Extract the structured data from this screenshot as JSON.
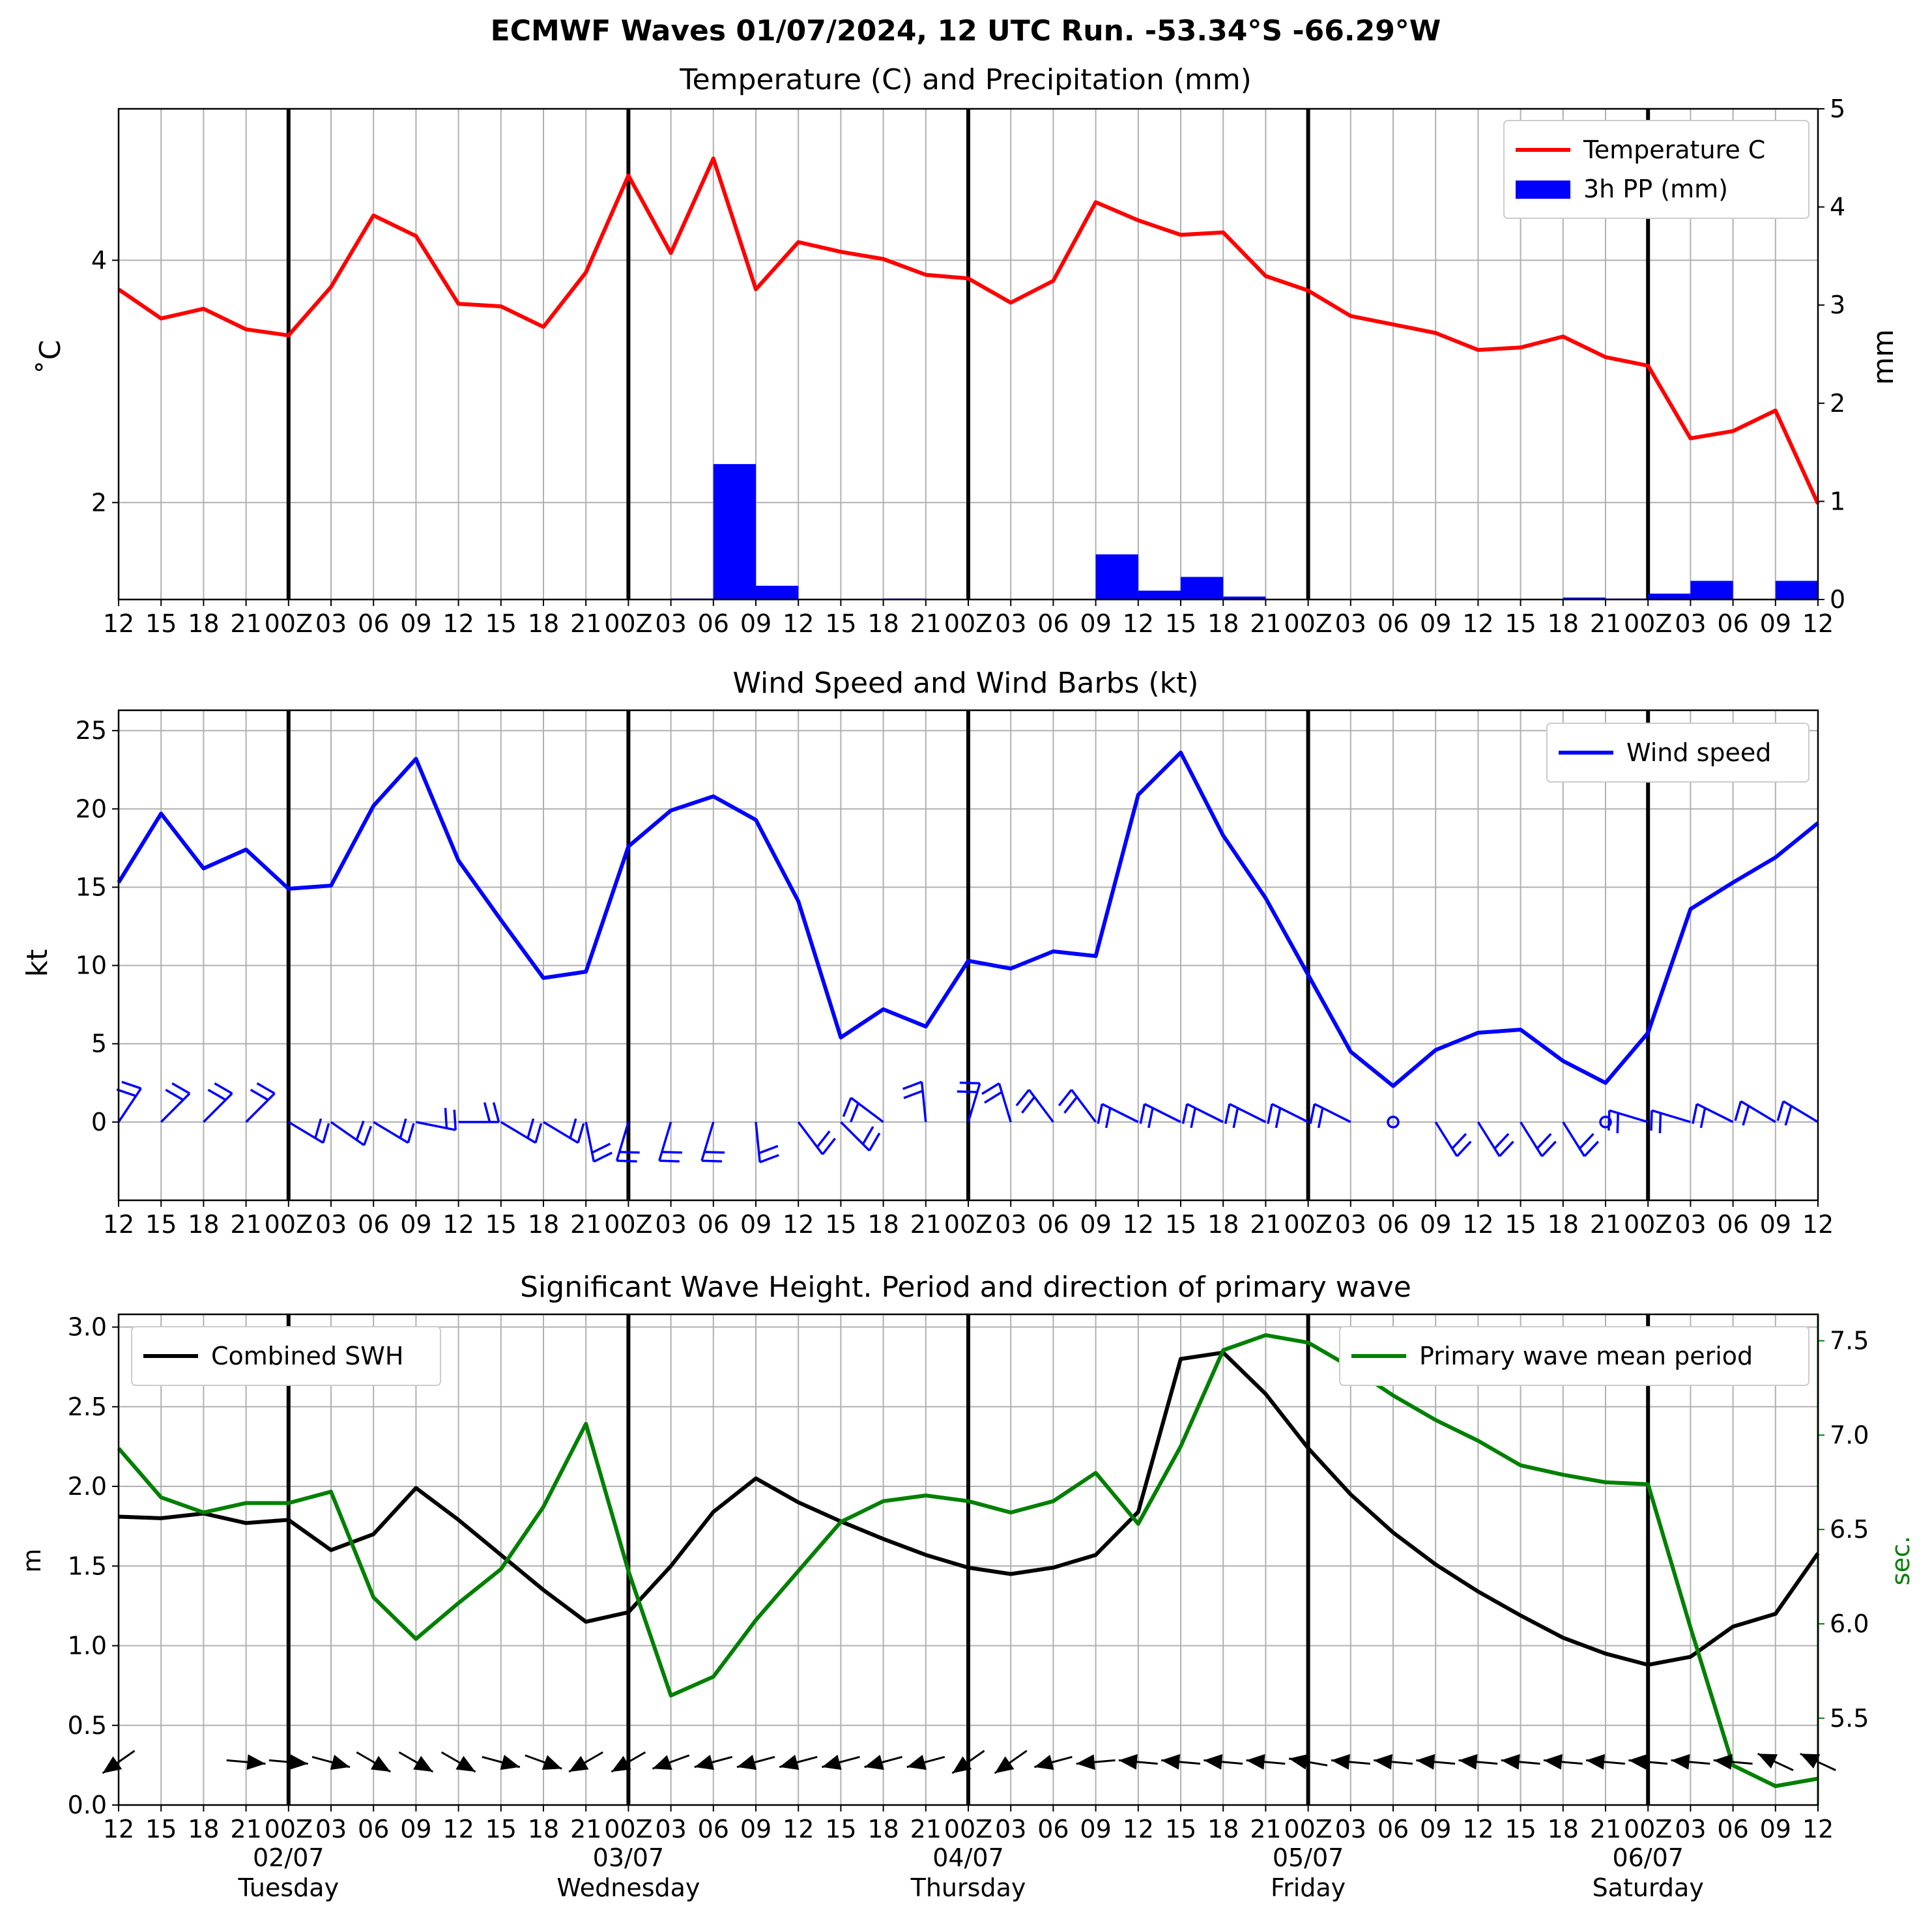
{
  "figure": {
    "title": "ECMWF Waves 01/07/2024, 12 UTC Run. -53.34°S -66.29°W"
  },
  "colors": {
    "temperature": "#ff0000",
    "precipitation": "#0000ff",
    "wind": "#0000ff",
    "swh": "#000000",
    "period": "#008000",
    "grid": "#b0b0b0"
  },
  "chart_data": [
    {
      "type": "line",
      "id": "temp_precip",
      "title": "Temperature (C) and Precipitation (mm)",
      "ylabel": "$^\\circ$C",
      "ylabel_display": "˚C",
      "y2label": "mm",
      "ylim": [
        1.2,
        5.25
      ],
      "y2lim": [
        0,
        5
      ],
      "yticks": [
        2,
        4
      ],
      "y2ticks": [
        0,
        1,
        2,
        3,
        4,
        5
      ],
      "x_ticklabels": [
        "12",
        "15",
        "18",
        "21",
        "00Z",
        "03",
        "06",
        "09",
        "12",
        "15",
        "18",
        "21",
        "00Z",
        "03",
        "06",
        "09",
        "12",
        "15",
        "18",
        "21",
        "00Z",
        "03",
        "06",
        "09",
        "12",
        "15",
        "18",
        "21",
        "00Z",
        "03",
        "06",
        "09",
        "12",
        "15",
        "18",
        "21",
        "00Z",
        "03",
        "06",
        "09",
        "12"
      ],
      "legend": [
        "Temperature C",
        "3h PP (mm)"
      ],
      "legend_position": "top-right",
      "grid": true,
      "series": [
        {
          "name": "Temperature C",
          "type": "line",
          "values": [
            3.76,
            3.52,
            3.6,
            3.43,
            3.38,
            3.78,
            4.37,
            4.2,
            3.64,
            3.62,
            3.45,
            3.9,
            4.7,
            4.06,
            4.84,
            3.76,
            4.15,
            4.07,
            4.01,
            3.88,
            3.85,
            3.65,
            3.83,
            4.48,
            4.33,
            4.21,
            4.23,
            3.87,
            3.75,
            3.54,
            3.47,
            3.4,
            3.26,
            3.28,
            3.37,
            3.2,
            3.13,
            2.53,
            2.59,
            2.76,
            1.99
          ]
        },
        {
          "name": "3h PP (mm)",
          "type": "bar",
          "values": [
            0,
            0,
            0,
            0,
            0,
            0,
            0,
            0,
            0,
            0,
            0,
            0,
            0,
            0.01,
            1.38,
            0.14,
            0,
            0,
            0.01,
            0,
            0,
            0,
            0,
            0.46,
            0.09,
            0.23,
            0.03,
            0,
            0,
            0,
            0,
            0,
            0,
            0,
            0.02,
            0.01,
            0.06,
            0.19,
            0,
            0.19
          ]
        }
      ]
    },
    {
      "type": "line",
      "id": "wind",
      "title": "Wind Speed and Wind Barbs (kt)",
      "ylabel": "kt",
      "ylim": [
        -5,
        26.3
      ],
      "yticks": [
        0,
        5,
        10,
        15,
        20,
        25
      ],
      "x_ticklabels": [
        "12",
        "15",
        "18",
        "21",
        "00Z",
        "03",
        "06",
        "09",
        "12",
        "15",
        "18",
        "21",
        "00Z",
        "03",
        "06",
        "09",
        "12",
        "15",
        "18",
        "21",
        "00Z",
        "03",
        "06",
        "09",
        "12",
        "15",
        "18",
        "21",
        "00Z",
        "03",
        "06",
        "09",
        "12",
        "15",
        "18",
        "21",
        "00Z",
        "03",
        "06",
        "09",
        "12"
      ],
      "legend": [
        "Wind speed"
      ],
      "legend_position": "top-right",
      "grid": true,
      "series": [
        {
          "name": "Wind speed",
          "values": [
            15.3,
            19.7,
            16.2,
            17.4,
            14.9,
            15.1,
            20.2,
            23.2,
            16.7,
            12.9,
            9.2,
            9.6,
            17.6,
            19.9,
            20.8,
            19.3,
            14.1,
            5.4,
            7.2,
            6.1,
            10.3,
            9.8,
            10.9,
            10.6,
            20.9,
            23.6,
            18.3,
            14.3,
            9.4,
            4.5,
            2.3,
            4.6,
            5.7,
            5.9,
            3.9,
            2.5,
            5.7,
            13.6,
            15.3,
            16.9,
            19.1
          ]
        }
      ],
      "barbs": [
        {
          "u": -1,
          "v": -1.5
        },
        {
          "u": -1,
          "v": -1
        },
        {
          "u": -1,
          "v": -1
        },
        {
          "u": -1,
          "v": -1
        },
        {
          "u": -1,
          "v": 0.6
        },
        {
          "u": -1,
          "v": 0.7
        },
        {
          "u": -1,
          "v": 0.6
        },
        {
          "u": -1,
          "v": 0.2
        },
        {
          "u": -1,
          "v": 0
        },
        {
          "u": -1,
          "v": 0.6
        },
        {
          "u": -1,
          "v": 0.6
        },
        {
          "u": -0.2,
          "v": 1
        },
        {
          "u": 0.3,
          "v": 1
        },
        {
          "u": 0.3,
          "v": 1
        },
        {
          "u": 0.3,
          "v": 1
        },
        {
          "u": -0.1,
          "v": 1
        },
        {
          "u": -0.6,
          "v": 0.8
        },
        {
          "u": -0.7,
          "v": 0.7
        },
        {
          "u": 0.8,
          "v": -0.6
        },
        {
          "u": 0.1,
          "v": -1
        },
        {
          "u": -0.3,
          "v": -1
        },
        {
          "u": 0.3,
          "v": -1
        },
        {
          "u": 0.6,
          "v": -0.8
        },
        {
          "u": 0.6,
          "v": -0.8
        },
        {
          "u": 1,
          "v": -0.5
        },
        {
          "u": 1,
          "v": -0.5
        },
        {
          "u": 1,
          "v": -0.5
        },
        {
          "u": 1,
          "v": -0.5
        },
        {
          "u": 1,
          "v": -0.5
        },
        {
          "u": 1,
          "v": -0.5
        },
        {
          "u": 0,
          "v": 0,
          "calm": true
        },
        {
          "u": -0.5,
          "v": 0.8
        },
        {
          "u": -0.5,
          "v": 0.8
        },
        {
          "u": -0.5,
          "v": 0.8
        },
        {
          "u": -0.5,
          "v": 0.8
        },
        {
          "u": 0,
          "v": 0,
          "calm": true
        },
        {
          "u": 1,
          "v": -0.3
        },
        {
          "u": 1,
          "v": -0.3
        },
        {
          "u": 1,
          "v": -0.5
        },
        {
          "u": 1,
          "v": -0.6
        },
        {
          "u": 1,
          "v": -0.6
        }
      ]
    },
    {
      "type": "line",
      "id": "waves",
      "title": "Significant Wave Height. Period and direction of primary wave",
      "ylabel": "m",
      "y2label": "sec.",
      "ylim": [
        0,
        3.08
      ],
      "y2lim": [
        5.04,
        7.64
      ],
      "yticks": [
        0.0,
        0.5,
        1.0,
        1.5,
        2.0,
        2.5,
        3.0
      ],
      "y2ticks": [
        5.5,
        6.0,
        6.5,
        7.0,
        7.5
      ],
      "x_ticklabels": [
        "12",
        "15",
        "18",
        "21",
        "00Z",
        "03",
        "06",
        "09",
        "12",
        "15",
        "18",
        "21",
        "00Z",
        "03",
        "06",
        "09",
        "12",
        "15",
        "18",
        "21",
        "00Z",
        "03",
        "06",
        "09",
        "12",
        "15",
        "18",
        "21",
        "00Z",
        "03",
        "06",
        "09",
        "12",
        "15",
        "18",
        "21",
        "00Z",
        "03",
        "06",
        "09",
        "12"
      ],
      "day_labels": [
        {
          "index": 4,
          "date": "02/07",
          "day": "Tuesday"
        },
        {
          "index": 12,
          "date": "03/07",
          "day": "Wednesday"
        },
        {
          "index": 20,
          "date": "04/07",
          "day": "Thursday"
        },
        {
          "index": 28,
          "date": "05/07",
          "day": "Friday"
        },
        {
          "index": 36,
          "date": "06/07",
          "day": "Saturday"
        }
      ],
      "legend_left": [
        "Combined SWH"
      ],
      "legend_right": [
        "Primary wave mean period"
      ],
      "grid": true,
      "series": [
        {
          "name": "Combined SWH",
          "axis": "left",
          "values": [
            1.81,
            1.8,
            1.83,
            1.77,
            1.79,
            1.6,
            1.7,
            1.99,
            1.79,
            1.57,
            1.35,
            1.15,
            1.21,
            1.5,
            1.84,
            2.05,
            1.9,
            1.78,
            1.67,
            1.57,
            1.49,
            1.45,
            1.49,
            1.57,
            1.84,
            2.8,
            2.84,
            2.58,
            2.24,
            1.95,
            1.71,
            1.51,
            1.34,
            1.19,
            1.05,
            0.95,
            0.88,
            0.93,
            1.12,
            1.2,
            1.58
          ]
        },
        {
          "name": "Primary wave mean period",
          "axis": "right",
          "values": [
            6.93,
            6.67,
            6.59,
            6.64,
            6.64,
            6.7,
            6.14,
            5.92,
            6.11,
            6.29,
            6.62,
            7.06,
            6.28,
            5.62,
            5.72,
            6.02,
            6.28,
            6.54,
            6.65,
            6.68,
            6.65,
            6.59,
            6.65,
            6.8,
            6.53,
            6.94,
            7.45,
            7.53,
            7.49,
            7.36,
            7.21,
            7.08,
            6.97,
            6.84,
            6.79,
            6.75,
            6.74,
            5.98,
            5.25,
            5.14,
            5.18
          ]
        }
      ],
      "directions_deg": [
        235,
        null,
        null,
        95,
        95,
        105,
        120,
        120,
        120,
        105,
        110,
        240,
        240,
        250,
        255,
        255,
        255,
        255,
        255,
        255,
        235,
        235,
        255,
        265,
        275,
        275,
        275,
        275,
        280,
        275,
        275,
        275,
        275,
        275,
        275,
        275,
        275,
        275,
        275,
        295,
        295
      ]
    }
  ]
}
